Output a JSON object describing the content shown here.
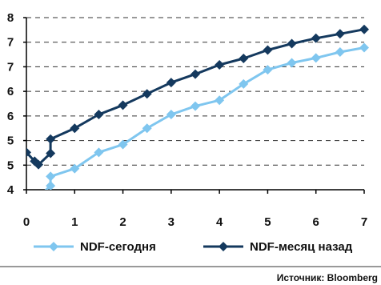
{
  "chart_data": {
    "type": "line",
    "x_ticks": [
      "0",
      "1",
      "2",
      "3",
      "4",
      "5",
      "6",
      "7"
    ],
    "y_tick_labels": [
      "4",
      "5",
      "5",
      "6",
      "6",
      "7",
      "7",
      "8"
    ],
    "y_tick_values": [
      4.0,
      4.5,
      5.0,
      5.5,
      6.0,
      6.5,
      7.0,
      7.5
    ],
    "xlim": [
      0,
      7
    ],
    "ylim": [
      4.0,
      7.5
    ],
    "grid": {
      "horizontal": "dashed",
      "vertical": false
    },
    "legend_position": "bottom",
    "series": [
      {
        "name": "NDF-сегодня",
        "color": "#7fc6ef",
        "marker": "diamond",
        "x": [
          0.25,
          0.5,
          0.5,
          1.0,
          1.5,
          2.0,
          2.5,
          3.0,
          3.5,
          4.0,
          4.5,
          5.0,
          5.5,
          6.0,
          6.5,
          7.0
        ],
        "y": [
          3.85,
          4.08,
          4.27,
          4.43,
          4.76,
          4.92,
          5.25,
          5.53,
          5.7,
          5.82,
          6.15,
          6.44,
          6.58,
          6.68,
          6.8,
          6.89
        ]
      },
      {
        "name": "NDF-месяц назад",
        "color": "#14395e",
        "marker": "diamond",
        "x": [
          0.0,
          0.17,
          0.25,
          0.5,
          0.5,
          1.0,
          1.5,
          2.0,
          2.5,
          3.0,
          3.5,
          4.0,
          4.5,
          5.0,
          5.5,
          6.0,
          6.5,
          7.0
        ],
        "y": [
          4.76,
          4.58,
          4.51,
          4.74,
          5.03,
          5.25,
          5.53,
          5.72,
          5.95,
          6.18,
          6.35,
          6.54,
          6.67,
          6.84,
          6.97,
          7.08,
          7.17,
          7.26
        ]
      }
    ]
  },
  "source_text": "Источник: Bloomberg"
}
